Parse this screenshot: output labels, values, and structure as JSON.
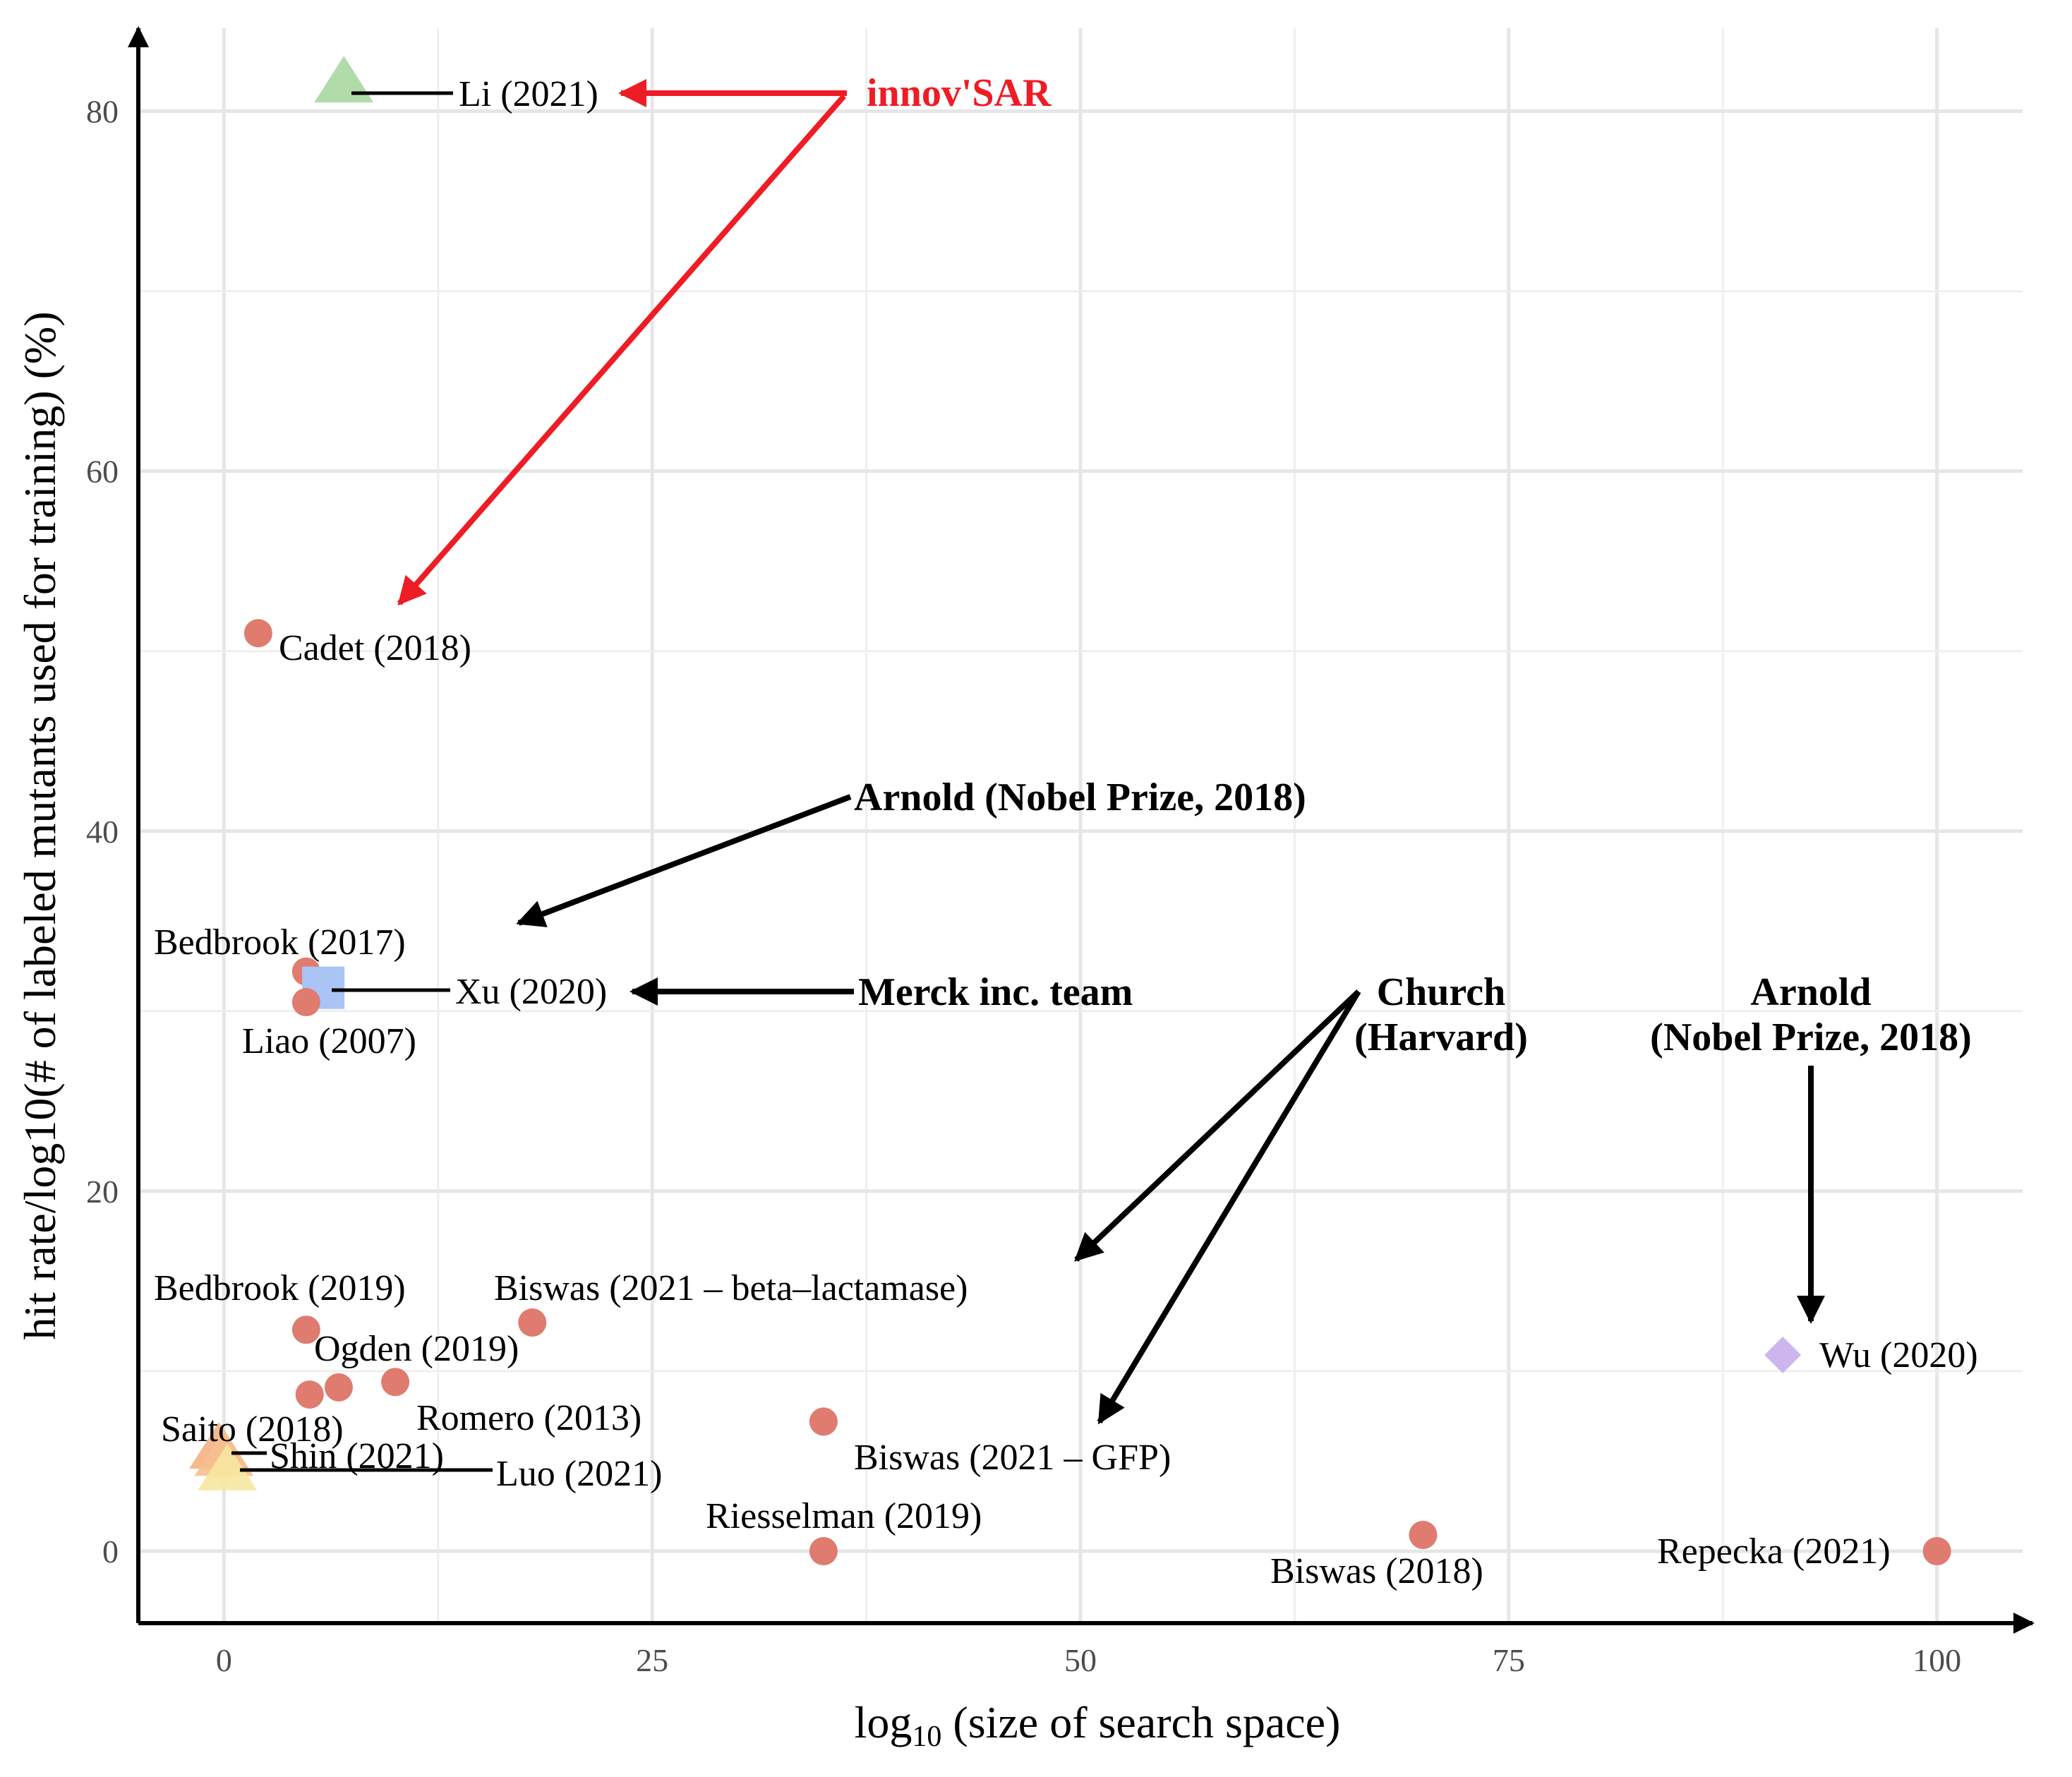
{
  "chart_data": {
    "type": "scatter",
    "title": "",
    "xlabel": "log",
    "xlabel_sub": "10",
    "xlabel_rest": " (size of search space)",
    "ylabel": "hit rate/log10(# of labeled mutants used for training) (%)",
    "xlim": [
      -5,
      105
    ],
    "ylim": [
      -4,
      85
    ],
    "x_ticks": [
      0,
      25,
      50,
      75,
      100
    ],
    "y_ticks": [
      0,
      20,
      40,
      60,
      80
    ],
    "grid": true,
    "legend": "none",
    "points": [
      {
        "label": "Li (2021)",
        "x": 7,
        "y": 81.5,
        "shape": "triangle",
        "color": "#a8d8a0"
      },
      {
        "label": "Cadet (2018)",
        "x": 2,
        "y": 51,
        "shape": "circle",
        "color": "#e07b6f"
      },
      {
        "label": "Bedbrook (2017)",
        "x": 4.8,
        "y": 32.2,
        "shape": "circle",
        "color": "#e07b6f"
      },
      {
        "label": "Xu (2020)",
        "x": 5.8,
        "y": 31.3,
        "shape": "square",
        "color": "#a9c4f5"
      },
      {
        "label": "Liao (2007)",
        "x": 4.8,
        "y": 30.5,
        "shape": "circle",
        "color": "#e07b6f"
      },
      {
        "label": "Bedbrook (2019)",
        "x": 4.8,
        "y": 12.3,
        "shape": "circle",
        "color": "#e07b6f"
      },
      {
        "label": "Biswas (2021 – beta–lactamase)",
        "x": 18,
        "y": 12.7,
        "shape": "circle",
        "color": "#e07b6f"
      },
      {
        "label": "Ogden (2019)",
        "x": 10,
        "y": 9.4,
        "shape": "circle",
        "color": "#e07b6f"
      },
      {
        "label": "",
        "x": 6.7,
        "y": 9.1,
        "shape": "circle",
        "color": "#e07b6f"
      },
      {
        "label": "",
        "x": 5,
        "y": 8.7,
        "shape": "circle",
        "color": "#e07b6f"
      },
      {
        "label": "Romero (2013)",
        "x": 10,
        "y": 9.4,
        "shape": "none",
        "color": "#e07b6f"
      },
      {
        "label": "Biswas (2021 – GFP)",
        "x": 35,
        "y": 7.2,
        "shape": "circle",
        "color": "#e07b6f"
      },
      {
        "label": "Saito (2018)",
        "x": -0.3,
        "y": 5.6,
        "shape": "triangle",
        "color": "#f4b183"
      },
      {
        "label": "Shin (2021)",
        "x": 0,
        "y": 5.2,
        "shape": "triangle",
        "color": "#f6c08f"
      },
      {
        "label": "Luo (2021)",
        "x": 0.2,
        "y": 4.4,
        "shape": "triangle",
        "color": "#f7e7a0"
      },
      {
        "label": "Riesselman (2019)",
        "x": 35,
        "y": 0,
        "shape": "circle",
        "color": "#e07b6f"
      },
      {
        "label": "Biswas (2018)",
        "x": 70,
        "y": 0.9,
        "shape": "circle",
        "color": "#e07b6f"
      },
      {
        "label": "Wu (2020)",
        "x": 91,
        "y": 10.9,
        "shape": "diamond",
        "color": "#cdb6ee"
      },
      {
        "label": "Repecka (2021)",
        "x": 100,
        "y": 0,
        "shape": "circle",
        "color": "#e07b6f"
      }
    ],
    "annotations": [
      {
        "text": "innov'SAR",
        "color": "#ee1c25"
      },
      {
        "text": "Arnold (Nobel Prize, 2018)",
        "color": "#000000"
      },
      {
        "text": "Merck inc. team",
        "color": "#000000"
      },
      {
        "text": "Church",
        "color": "#000000"
      },
      {
        "text": "(Harvard)",
        "color": "#000000"
      },
      {
        "text": "Arnold",
        "color": "#000000"
      },
      {
        "text": "(Nobel Prize, 2018)",
        "color": "#000000"
      }
    ]
  }
}
